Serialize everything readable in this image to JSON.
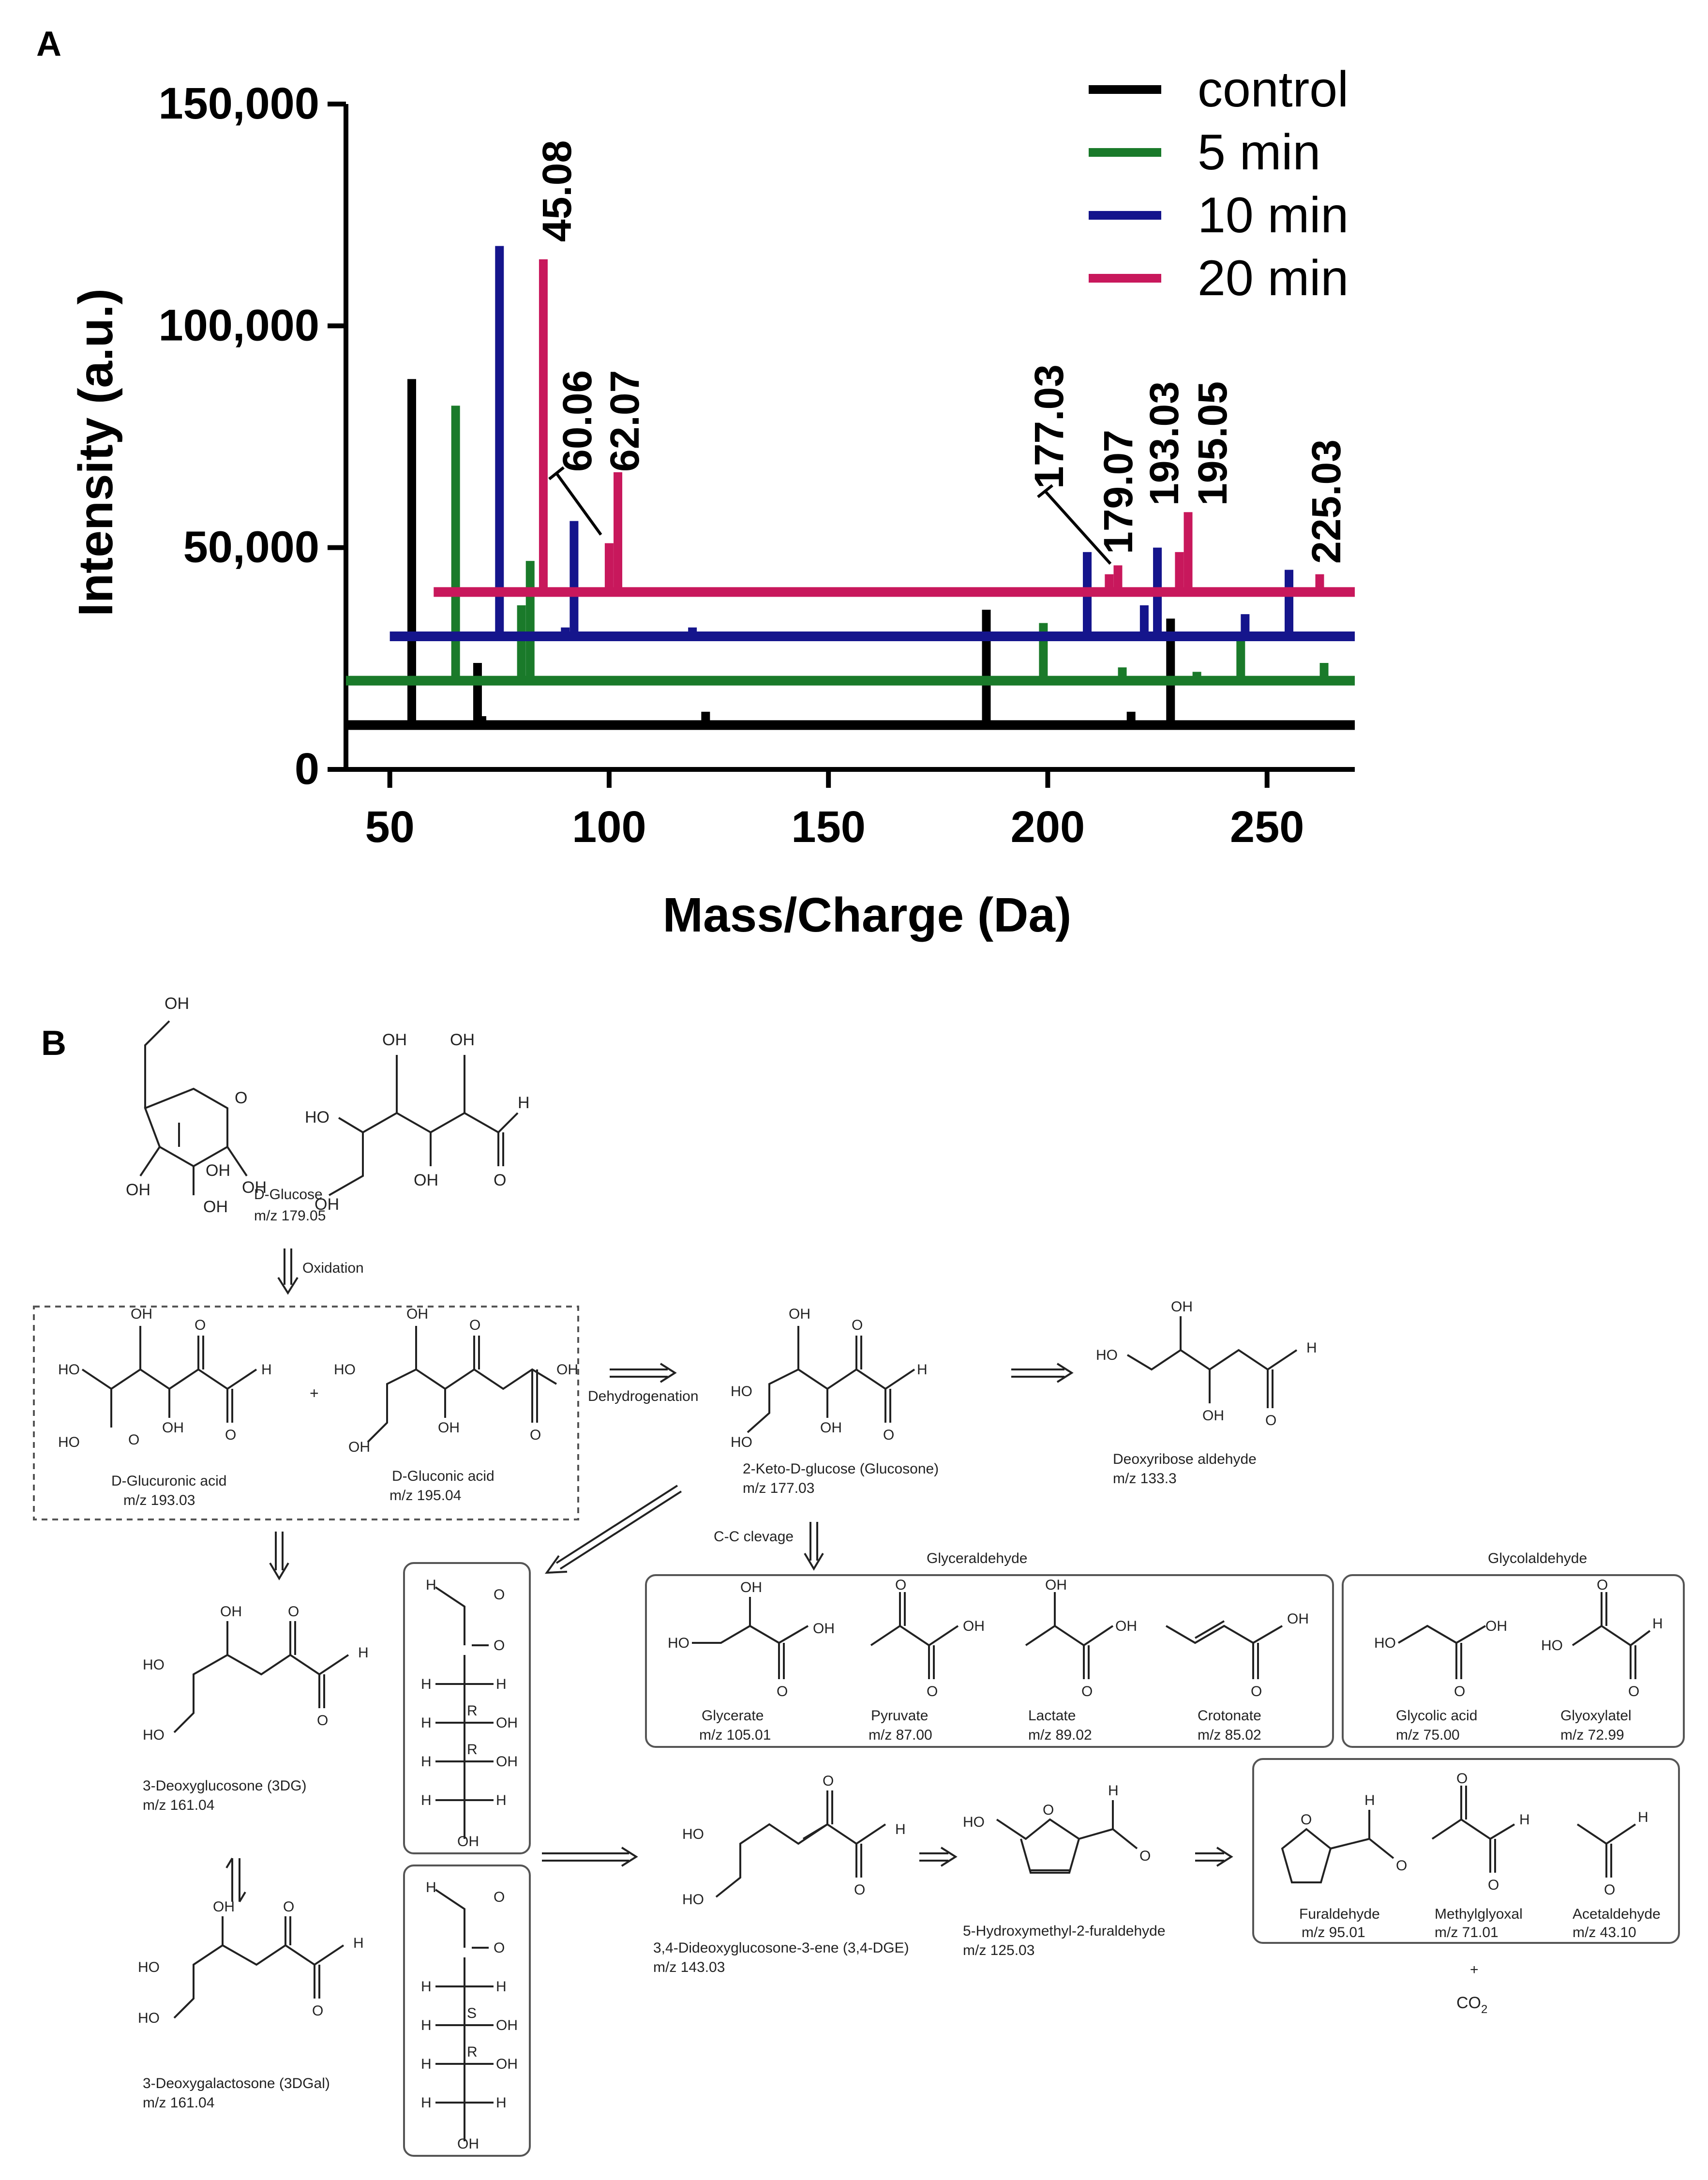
{
  "panel_a": {
    "letter": "A",
    "chart_data": {
      "type": "bar",
      "xlabel": "Mass/Charge (Da)",
      "ylabel": "Intensity (a.u.)",
      "xlim": [
        40,
        270
      ],
      "ylim": [
        0,
        150000
      ],
      "xticks": [
        50,
        100,
        150,
        200,
        250
      ],
      "yticks": [
        0,
        50000,
        100000,
        150000
      ],
      "ytick_labels": [
        "0",
        "50,000",
        "100,000",
        "150,000"
      ],
      "legend_position": "top-right",
      "series": [
        {
          "name": "control",
          "color": "#000000",
          "baseline": 10000,
          "x_range": [
            40,
            270
          ],
          "peaks": [
            [
              55,
              88000
            ],
            [
              70,
              24000
            ],
            [
              71,
              12000
            ],
            [
              122,
              13000
            ],
            [
              186,
              36000
            ],
            [
              219,
              13000
            ],
            [
              228,
              34000
            ]
          ]
        },
        {
          "name": "5 min",
          "color": "#1a7a2a",
          "baseline": 20000,
          "x_range": [
            40,
            270
          ],
          "peaks": [
            [
              65,
              82000
            ],
            [
              80,
              37000
            ],
            [
              82,
              47000
            ],
            [
              199,
              33000
            ],
            [
              217,
              23000
            ],
            [
              234,
              22000
            ],
            [
              244,
              31000
            ],
            [
              263,
              24000
            ]
          ]
        },
        {
          "name": "10 min",
          "color": "#15158c",
          "baseline": 30000,
          "x_range": [
            50,
            270
          ],
          "peaks": [
            [
              75,
              118000
            ],
            [
              90,
              32000
            ],
            [
              92,
              56000
            ],
            [
              119,
              32000
            ],
            [
              209,
              49000
            ],
            [
              222,
              37000
            ],
            [
              225,
              50000
            ],
            [
              245,
              35000
            ],
            [
              255,
              45000
            ]
          ]
        },
        {
          "name": "20 min",
          "color": "#c8185c",
          "baseline": 40000,
          "x_range": [
            60,
            270
          ],
          "peaks": [
            [
              85,
              115000
            ],
            [
              100,
              51000
            ],
            [
              102,
              67000
            ],
            [
              214,
              44000
            ],
            [
              216,
              46000
            ],
            [
              230,
              49000
            ],
            [
              232,
              58000
            ],
            [
              262,
              44000
            ]
          ]
        }
      ],
      "annotations": [
        "45.08",
        "60.06",
        "62.07",
        "177.03",
        "179.07",
        "193.03",
        "195.05",
        "225.03"
      ]
    }
  },
  "panel_b": {
    "letter": "B",
    "glucose": {
      "name": "D-Glucose",
      "mz": "m/z 179.05"
    },
    "oxidation": "Oxidation",
    "glucuronic": {
      "name": "D-Glucuronic acid",
      "mz": "m/z 193.03"
    },
    "gluconic": {
      "name": "D-Gluconic acid",
      "mz": "m/z 195.04"
    },
    "plus": "+",
    "dehydrogenation": "Dehydrogenation",
    "glucosone": {
      "name": "2-Keto-D-glucose (Glucosone)",
      "mz": "m/z 177.03"
    },
    "deoxyribose": {
      "name": "Deoxyribose aldehyde",
      "mz": "m/z 133.3"
    },
    "cc_cleavage": "C-C clevage",
    "glyceraldehyde_title": "Glyceraldehyde",
    "glycolaldehyde_title": "Glycolaldehyde",
    "glycerate": {
      "name": "Glycerate",
      "mz": "m/z 105.01"
    },
    "pyruvate": {
      "name": "Pyruvate",
      "mz": "m/z 87.00"
    },
    "lactate": {
      "name": "Lactate",
      "mz": "m/z 89.02"
    },
    "crotonate": {
      "name": "Crotonate",
      "mz": "m/z 85.02"
    },
    "glycolic": {
      "name": "Glycolic acid",
      "mz": "m/z 75.00"
    },
    "glyoxylate": {
      "name": "Glyoxylatel",
      "mz": "m/z 72.99"
    },
    "dg3": {
      "name": "3-Deoxyglucosone (3DG)",
      "mz": "m/z 161.04"
    },
    "dgal3": {
      "name": "3-Deoxygalactosone (3DGal)",
      "mz": "m/z 161.04"
    },
    "dge": {
      "name": "3,4-Dideoxyglucosone-3-ene (3,4-DGE)",
      "mz": "m/z 143.03"
    },
    "hmf": {
      "name": "5-Hydroxymethyl-2-furaldehyde",
      "mz": "m/z 125.03"
    },
    "furaldehyde": {
      "name": "Furaldehyde",
      "mz": "m/z 95.01"
    },
    "methylglyoxal": {
      "name": "Methylglyoxal",
      "mz": "m/z 71.01"
    },
    "acetaldehyde": {
      "name": "Acetaldehyde",
      "mz": "m/z 43.10"
    },
    "co2": "CO",
    "co2_sub": "2",
    "atoms": {
      "oh": "OH",
      "ho": "HO",
      "o": "O",
      "h": "H",
      "r": "R",
      "s": "S"
    }
  }
}
